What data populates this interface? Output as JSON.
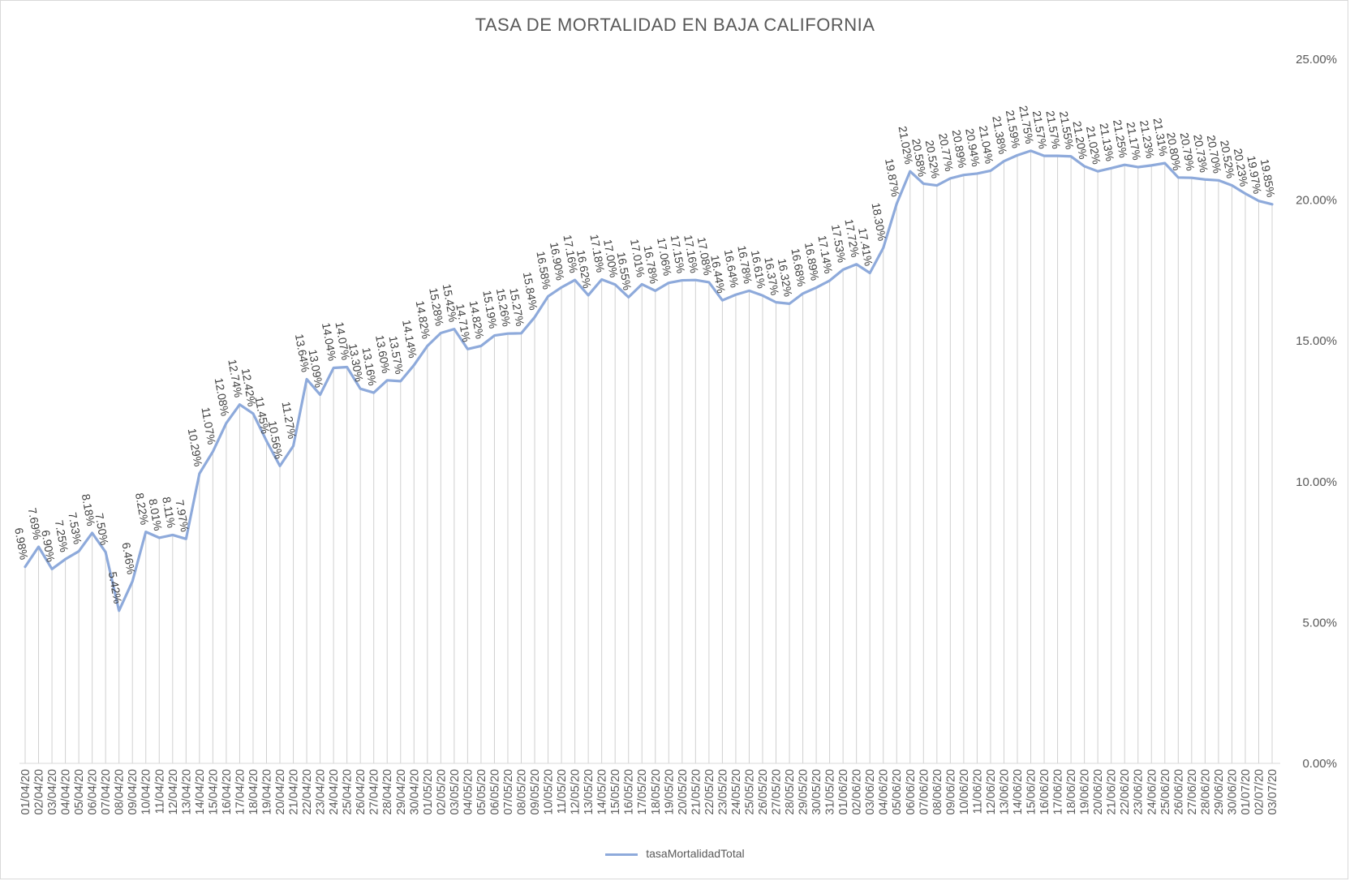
{
  "chart_data": {
    "type": "line",
    "title": "TASA DE MORTALIDAD EN BAJA CALIFORNIA",
    "xlabel": "",
    "ylabel": "",
    "ylim": [
      0,
      25
    ],
    "y_ticks": [
      "0.00%",
      "5.00%",
      "10.00%",
      "15.00%",
      "20.00%",
      "25.00%"
    ],
    "y_axis_side": "right",
    "grid": "vertical drop lines",
    "legend_position": "bottom",
    "line_color": "#8eaadb",
    "categories": [
      "01/04/20",
      "02/04/20",
      "03/04/20",
      "04/04/20",
      "05/04/20",
      "06/04/20",
      "07/04/20",
      "08/04/20",
      "09/04/20",
      "10/04/20",
      "11/04/20",
      "12/04/20",
      "13/04/20",
      "14/04/20",
      "15/04/20",
      "16/04/20",
      "17/04/20",
      "18/04/20",
      "19/04/20",
      "20/04/20",
      "21/04/20",
      "22/04/20",
      "23/04/20",
      "24/04/20",
      "25/04/20",
      "26/04/20",
      "27/04/20",
      "28/04/20",
      "29/04/20",
      "30/04/20",
      "01/05/20",
      "02/05/20",
      "03/05/20",
      "04/05/20",
      "05/05/20",
      "06/05/20",
      "07/05/20",
      "08/05/20",
      "09/05/20",
      "10/05/20",
      "11/05/20",
      "12/05/20",
      "13/05/20",
      "14/05/20",
      "15/05/20",
      "16/05/20",
      "17/05/20",
      "18/05/20",
      "19/05/20",
      "20/05/20",
      "21/05/20",
      "22/05/20",
      "23/05/20",
      "24/05/20",
      "25/05/20",
      "26/05/20",
      "27/05/20",
      "28/05/20",
      "29/05/20",
      "30/05/20",
      "31/05/20",
      "01/06/20",
      "02/06/20",
      "03/06/20",
      "04/06/20",
      "05/06/20",
      "06/06/20",
      "07/06/20",
      "08/06/20",
      "09/06/20",
      "10/06/20",
      "11/06/20",
      "12/06/20",
      "13/06/20",
      "14/06/20",
      "15/06/20",
      "16/06/20",
      "17/06/20",
      "18/06/20",
      "19/06/20",
      "20/06/20",
      "21/06/20",
      "22/06/20",
      "23/06/20",
      "24/06/20",
      "25/06/20",
      "26/06/20",
      "27/06/20",
      "28/06/20",
      "29/06/20",
      "30/06/20",
      "01/07/20",
      "02/07/20",
      "03/07/20"
    ],
    "series": [
      {
        "name": "tasaMortalidadTotal",
        "values": [
          6.98,
          7.69,
          6.9,
          7.25,
          7.53,
          8.18,
          7.5,
          5.42,
          6.46,
          8.22,
          8.01,
          8.11,
          7.97,
          10.29,
          11.07,
          12.08,
          12.74,
          12.42,
          11.45,
          10.56,
          11.27,
          13.64,
          13.09,
          14.04,
          14.07,
          13.3,
          13.16,
          13.6,
          13.57,
          14.14,
          14.82,
          15.28,
          15.42,
          14.71,
          14.82,
          15.19,
          15.26,
          15.27,
          15.84,
          16.58,
          16.9,
          17.16,
          16.62,
          17.18,
          17.0,
          16.55,
          17.01,
          16.78,
          17.06,
          17.15,
          17.16,
          17.08,
          16.44,
          16.64,
          16.78,
          16.61,
          16.37,
          16.32,
          16.68,
          16.89,
          17.14,
          17.53,
          17.72,
          17.41,
          18.3,
          19.87,
          21.02,
          20.58,
          20.52,
          20.77,
          20.89,
          20.94,
          21.04,
          21.38,
          21.59,
          21.75,
          21.57,
          21.57,
          21.55,
          21.2,
          21.02,
          21.13,
          21.25,
          21.17,
          21.23,
          21.31,
          20.8,
          20.79,
          20.73,
          20.7,
          20.52,
          20.23,
          19.97,
          19.85
        ],
        "labels": [
          "6.98%",
          "7.69%",
          "6.90%",
          "7.25%",
          "7.53%",
          "8.18%",
          "7.50%",
          "5.42%",
          "6.46%",
          "8.22%",
          "8.01%",
          "8.11%",
          "7.97%",
          "10.29%",
          "11.07%",
          "12.08%",
          "12.74%",
          "12.42%",
          "11.45%",
          "10.56%",
          "11.27%",
          "13.64%",
          "13.09%",
          "14.04%",
          "14.07%",
          "13.30%",
          "13.16%",
          "13.60%",
          "13.57%",
          "14.14%",
          "14.82%",
          "15.28%",
          "15.42%",
          "14.71%",
          "14.82%",
          "15.19%",
          "15.26%",
          "15.27%",
          "15.84%",
          "16.58%",
          "16.90%",
          "17.16%",
          "16.62%",
          "17.18%",
          "17.00%",
          "16.55%",
          "17.01%",
          "16.78%",
          "17.06%",
          "17.15%",
          "17.16%",
          "17.08%",
          "16.44%",
          "16.64%",
          "16.78%",
          "16.61%",
          "16.37%",
          "16.32%",
          "16.68%",
          "16.89%",
          "17.14%",
          "17.53%",
          "17.72%",
          "17.41%",
          "18.30%",
          "19.87%",
          "21.02%",
          "20.58%",
          "20.52%",
          "20.77%",
          "20.89%",
          "20.94%",
          "21.04%",
          "21.38%",
          "21.59%",
          "21.75%",
          "21.57%",
          "21.57%",
          "21.55%",
          "21.20%",
          "21.02%",
          "21.13%",
          "21.25%",
          "21.17%",
          "21.23%",
          "21.31%",
          "20.80%",
          "20.79%",
          "20.73%",
          "20.70%",
          "20.52%",
          "20.23%",
          "19.97%",
          "19.85%"
        ]
      }
    ]
  }
}
